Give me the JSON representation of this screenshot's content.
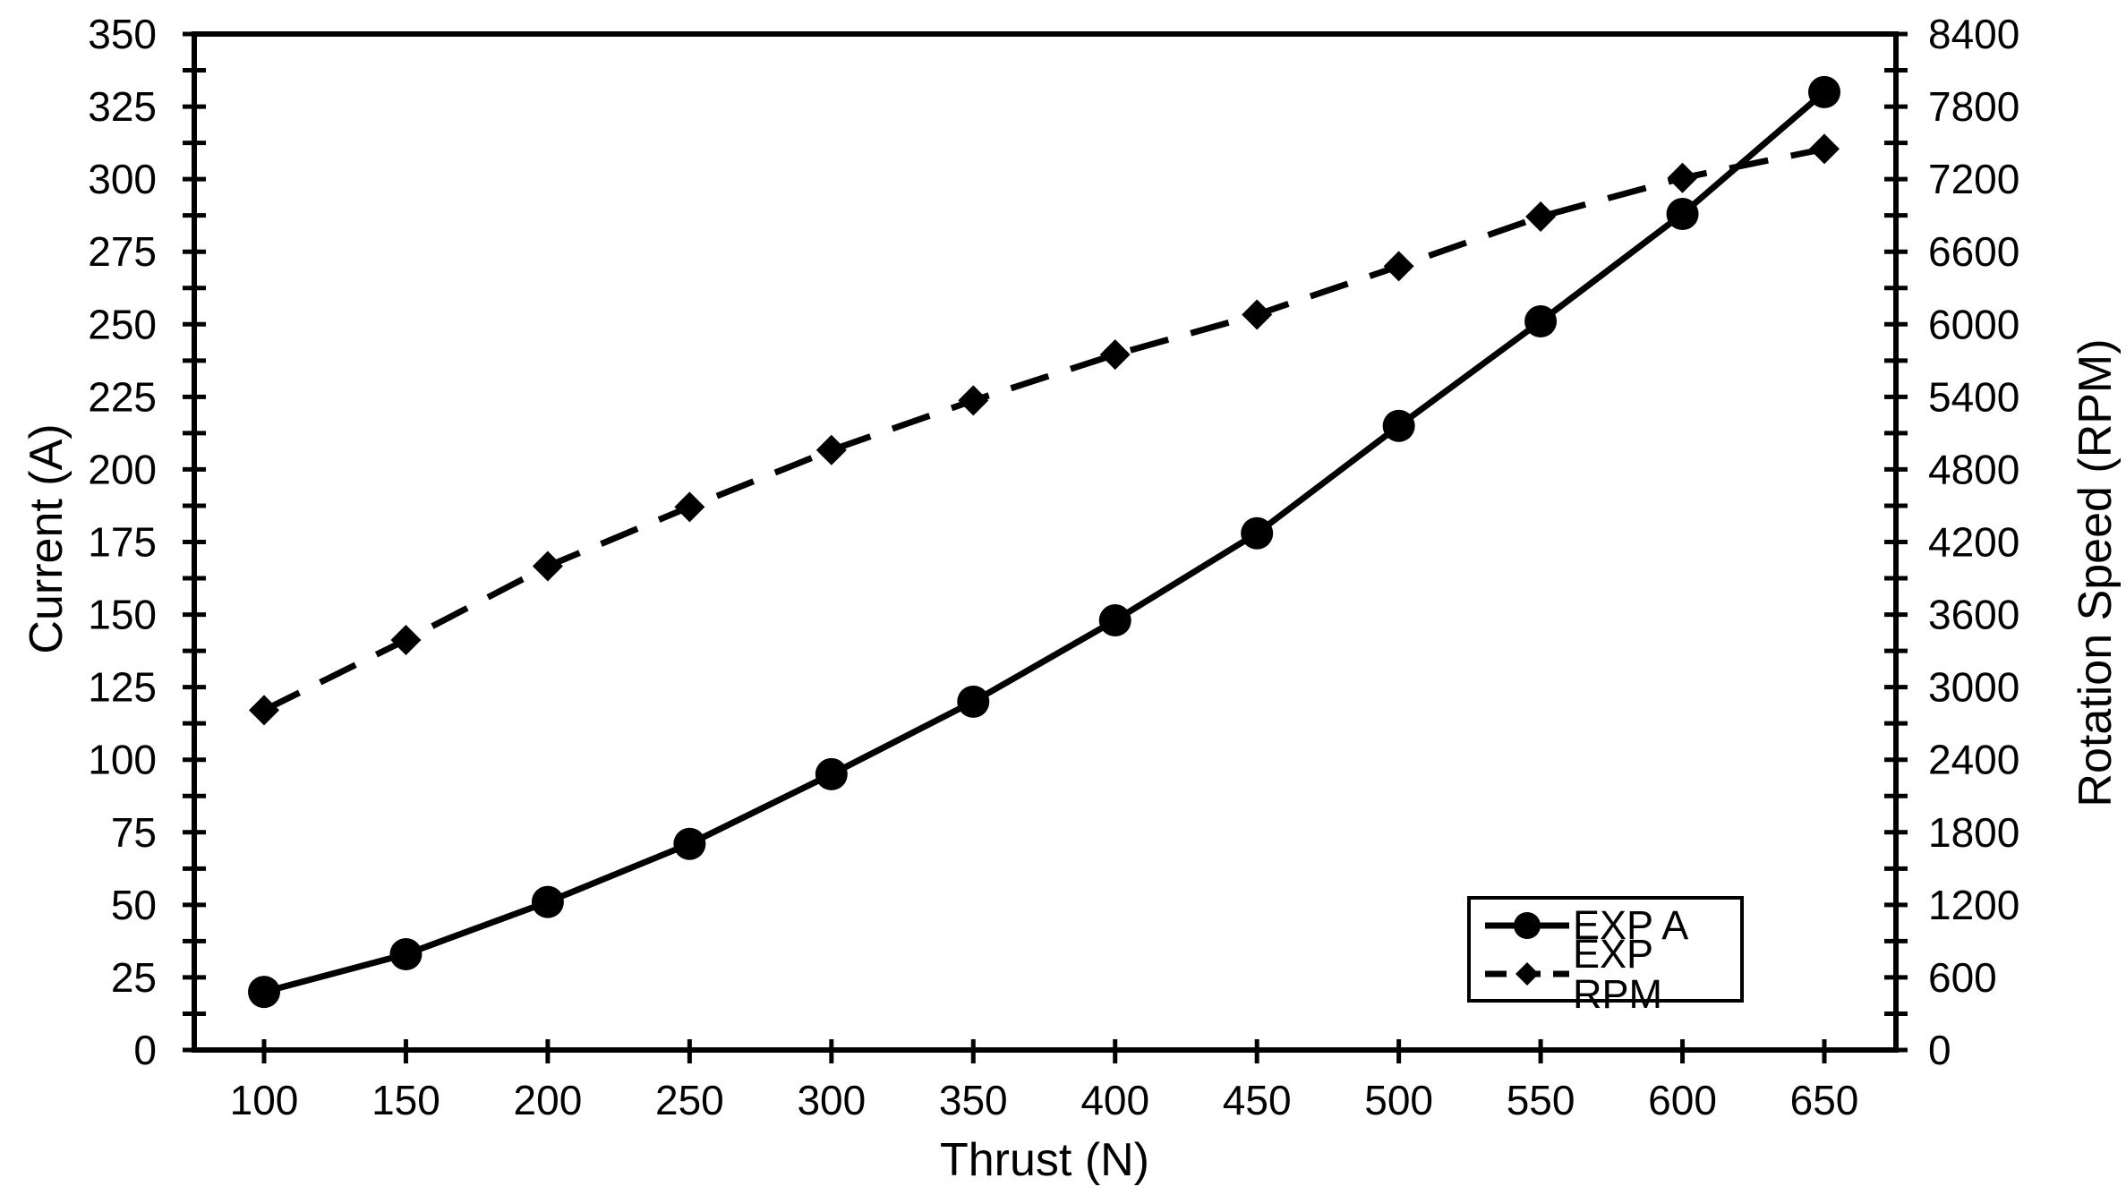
{
  "chart_data": {
    "type": "line",
    "title": "",
    "xlabel": "Thrust (N)",
    "x": [
      100,
      150,
      200,
      250,
      300,
      350,
      400,
      450,
      500,
      550,
      600,
      650
    ],
    "y_left": {
      "label": "Current (A)",
      "min": 0,
      "max": 350,
      "major": 25,
      "minor": 12.5
    },
    "y_right": {
      "label": "Rotation Speed (RPM)",
      "min": 0,
      "max": 8400,
      "major": 600,
      "minor": 300
    },
    "series": [
      {
        "name": "EXP A",
        "axis": "left",
        "line": "solid",
        "marker": "circle",
        "values": [
          20,
          33,
          51,
          71,
          95,
          120,
          148,
          178,
          215,
          251,
          288,
          330
        ]
      },
      {
        "name": "EXP RPM",
        "axis": "right",
        "line": "dashed",
        "marker": "diamond",
        "values": [
          2810,
          3390,
          4000,
          4490,
          4960,
          5370,
          5750,
          6080,
          6480,
          6890,
          7210,
          7450
        ]
      }
    ],
    "legend": {
      "position": "bottom-right",
      "entries": [
        "EXP A",
        "EXP RPM"
      ]
    },
    "grid": "off",
    "colors": {
      "stroke": "#000000",
      "background": "#ffffff",
      "text": "#000000"
    }
  }
}
